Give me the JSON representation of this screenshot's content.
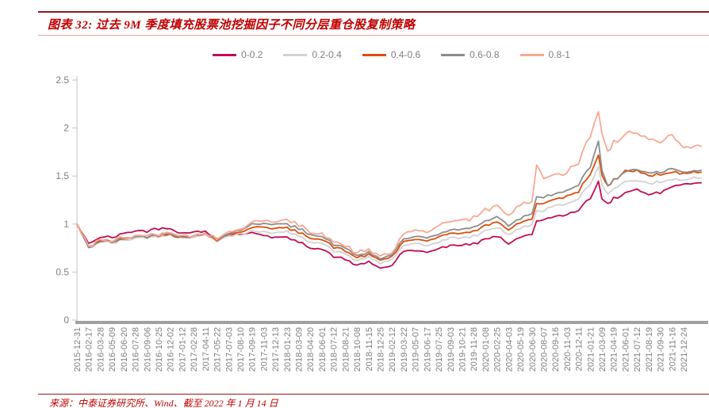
{
  "header": {
    "title": "图表 32: 过去 9M 季度填充股票池挖掘因子不同分层重仓股复制策略",
    "accent_color": "#C00000"
  },
  "footer": {
    "source": "来源：中泰证券研究所、Wind、截至 2022 年 1 月 14 日"
  },
  "chart_data": {
    "type": "line",
    "title": "过去 9M 季度填充股票池挖掘因子不同分层重仓股复制策略",
    "legend_position": "top",
    "grid": false,
    "ylim": [
      0,
      2.5
    ],
    "y_ticks": [
      0,
      0.5,
      1,
      1.5,
      2,
      2.5
    ],
    "axis_color": "#C6C6C6",
    "x_axis_bar_color": "#A0A0A0",
    "tick_label_color": "#7F7F7F",
    "x_tick_labels": [
      "2015-12-31",
      "2016-02-17",
      "2016-03-28",
      "2016-05-09",
      "2016-06-20",
      "2016-07-28",
      "2016-09-06",
      "2016-10-25",
      "2016-12-02",
      "2017-01-12",
      "2017-02-28",
      "2017-04-11",
      "2017-05-22",
      "2017-07-03",
      "2017-08-10",
      "2017-09-19",
      "2017-11-03",
      "2017-12-13",
      "2018-01-23",
      "2018-03-09",
      "2018-04-20",
      "2018-06-01",
      "2018-07-12",
      "2018-08-21",
      "2018-10-08",
      "2018-11-15",
      "2018-12-25",
      "2019-02-12",
      "2019-03-22",
      "2019-05-07",
      "2019-06-17",
      "2019-07-25",
      "2019-09-03",
      "2019-10-21",
      "2019-11-28",
      "2020-01-08",
      "2020-02-25",
      "2020-04-03",
      "2020-05-19",
      "2020-06-30",
      "2020-08-07",
      "2020-09-16",
      "2020-11-03",
      "2020-12-11",
      "2021-01-21",
      "2021-03-09",
      "2021-04-19",
      "2021-06-01",
      "2021-07-12",
      "2021-08-19",
      "2021-09-30",
      "2021-11-16",
      "2021-12-24"
    ],
    "x": [
      0,
      1,
      2,
      3,
      4,
      5,
      6,
      7,
      8,
      9,
      10,
      11,
      12,
      13,
      14,
      15,
      16,
      17,
      18,
      19,
      20,
      21,
      22,
      23,
      24,
      25,
      26,
      27,
      28,
      29,
      30,
      31,
      32,
      33,
      34,
      35,
      36,
      37,
      38,
      39,
      39.4,
      40,
      41,
      42,
      43,
      44,
      44.7,
      45,
      45.5,
      46,
      47,
      48,
      49,
      50,
      51,
      52,
      53.5
    ],
    "series": [
      {
        "name": "0-0.2",
        "color": "#C20C54",
        "values": [
          1.0,
          0.79,
          0.87,
          0.86,
          0.9,
          0.93,
          0.93,
          0.95,
          0.96,
          0.9,
          0.92,
          0.92,
          0.85,
          0.88,
          0.89,
          0.91,
          0.89,
          0.86,
          0.86,
          0.81,
          0.76,
          0.74,
          0.66,
          0.63,
          0.57,
          0.6,
          0.54,
          0.57,
          0.72,
          0.72,
          0.7,
          0.75,
          0.77,
          0.78,
          0.79,
          0.84,
          0.88,
          0.8,
          0.86,
          0.9,
          1.03,
          1.05,
          1.07,
          1.1,
          1.15,
          1.27,
          1.45,
          1.28,
          1.2,
          1.26,
          1.33,
          1.36,
          1.31,
          1.33,
          1.39,
          1.42,
          1.43
        ]
      },
      {
        "name": "0.2-0.4",
        "color": "#D2D2D2",
        "values": [
          1.0,
          0.75,
          0.82,
          0.8,
          0.83,
          0.86,
          0.86,
          0.87,
          0.89,
          0.85,
          0.87,
          0.88,
          0.83,
          0.87,
          0.89,
          0.92,
          0.93,
          0.9,
          0.92,
          0.87,
          0.82,
          0.8,
          0.72,
          0.69,
          0.62,
          0.65,
          0.59,
          0.63,
          0.78,
          0.79,
          0.77,
          0.82,
          0.85,
          0.86,
          0.87,
          0.93,
          0.97,
          0.89,
          0.95,
          1.0,
          1.13,
          1.15,
          1.18,
          1.21,
          1.27,
          1.42,
          1.6,
          1.42,
          1.3,
          1.36,
          1.45,
          1.46,
          1.42,
          1.43,
          1.46,
          1.47,
          1.48
        ]
      },
      {
        "name": "0.4-0.6",
        "color": "#DE4E0C",
        "values": [
          1.0,
          0.76,
          0.83,
          0.81,
          0.84,
          0.87,
          0.87,
          0.88,
          0.9,
          0.86,
          0.88,
          0.89,
          0.84,
          0.89,
          0.92,
          0.96,
          0.98,
          0.95,
          0.96,
          0.91,
          0.86,
          0.84,
          0.76,
          0.72,
          0.65,
          0.68,
          0.62,
          0.66,
          0.82,
          0.83,
          0.82,
          0.87,
          0.9,
          0.91,
          0.92,
          0.98,
          1.03,
          0.94,
          1.01,
          1.06,
          1.21,
          1.22,
          1.25,
          1.29,
          1.35,
          1.52,
          1.72,
          1.52,
          1.38,
          1.45,
          1.55,
          1.56,
          1.51,
          1.51,
          1.54,
          1.53,
          1.54
        ]
      },
      {
        "name": "0.6-0.8",
        "color": "#8C8C8C",
        "values": [
          1.0,
          0.75,
          0.82,
          0.81,
          0.85,
          0.87,
          0.87,
          0.89,
          0.91,
          0.86,
          0.88,
          0.9,
          0.85,
          0.9,
          0.94,
          0.99,
          1.02,
          0.99,
          1.0,
          0.95,
          0.9,
          0.87,
          0.79,
          0.75,
          0.67,
          0.7,
          0.64,
          0.68,
          0.85,
          0.86,
          0.85,
          0.9,
          0.93,
          0.95,
          0.96,
          1.03,
          1.08,
          0.99,
          1.06,
          1.11,
          1.28,
          1.28,
          1.31,
          1.35,
          1.42,
          1.6,
          1.87,
          1.58,
          1.38,
          1.46,
          1.55,
          1.57,
          1.53,
          1.54,
          1.57,
          1.55,
          1.56
        ]
      },
      {
        "name": "0.8-1",
        "color": "#F8A894",
        "values": [
          1.0,
          0.76,
          0.84,
          0.82,
          0.86,
          0.88,
          0.88,
          0.9,
          0.92,
          0.87,
          0.89,
          0.9,
          0.86,
          0.91,
          0.95,
          1.01,
          1.05,
          1.02,
          1.04,
          0.98,
          0.93,
          0.9,
          0.82,
          0.78,
          0.7,
          0.73,
          0.66,
          0.71,
          0.9,
          0.92,
          0.92,
          0.98,
          1.02,
          1.04,
          1.06,
          1.14,
          1.21,
          1.1,
          1.18,
          1.25,
          1.6,
          1.5,
          1.5,
          1.55,
          1.64,
          1.92,
          2.18,
          1.95,
          1.75,
          1.85,
          1.95,
          1.97,
          1.87,
          1.86,
          1.92,
          1.82,
          1.81
        ]
      }
    ]
  }
}
